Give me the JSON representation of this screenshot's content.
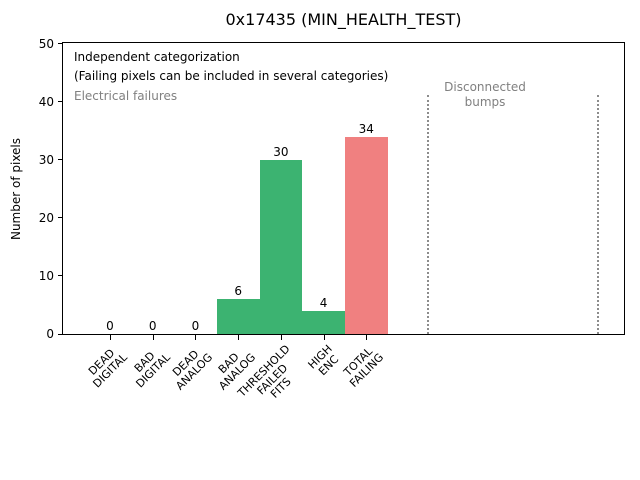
{
  "chart_data": {
    "type": "bar",
    "title": "0x17435 (MIN_HEALTH_TEST)",
    "ylabel": "Number of pixels",
    "xlabel": "",
    "categories": [
      "DEAD\nDIGITAL",
      "BAD\nDIGITAL",
      "DEAD\nANALOG",
      "BAD\nANALOG",
      "THRESHOLD\nFAILED\nFITS",
      "HIGH\nENC",
      "TOTAL\nFAILING"
    ],
    "values": [
      0,
      0,
      0,
      6,
      30,
      4,
      34
    ],
    "bar_colors": [
      "#3cb371",
      "#3cb371",
      "#3cb371",
      "#3cb371",
      "#3cb371",
      "#3cb371",
      "#f08080"
    ],
    "value_labels": [
      "0",
      "0",
      "0",
      "6",
      "30",
      "4",
      "34"
    ],
    "ylim": [
      0,
      50.3
    ],
    "yticks": [
      0,
      10,
      20,
      30,
      40,
      50
    ],
    "grid": false,
    "legend": "none",
    "annotations": {
      "line1": "Independent categorization",
      "line2": "(Failing pixels can be included in several categories)",
      "electrical": "Electrical failures",
      "disconnected": "Disconnected\nbumps"
    },
    "colors": {
      "pass_bar_green": "#3cb371",
      "fail_bar_red": "#f08080",
      "gray_annotation": "#808080",
      "dotted_separator": "#8c8c8c",
      "axes": "#000000",
      "background": "#ffffff"
    }
  }
}
